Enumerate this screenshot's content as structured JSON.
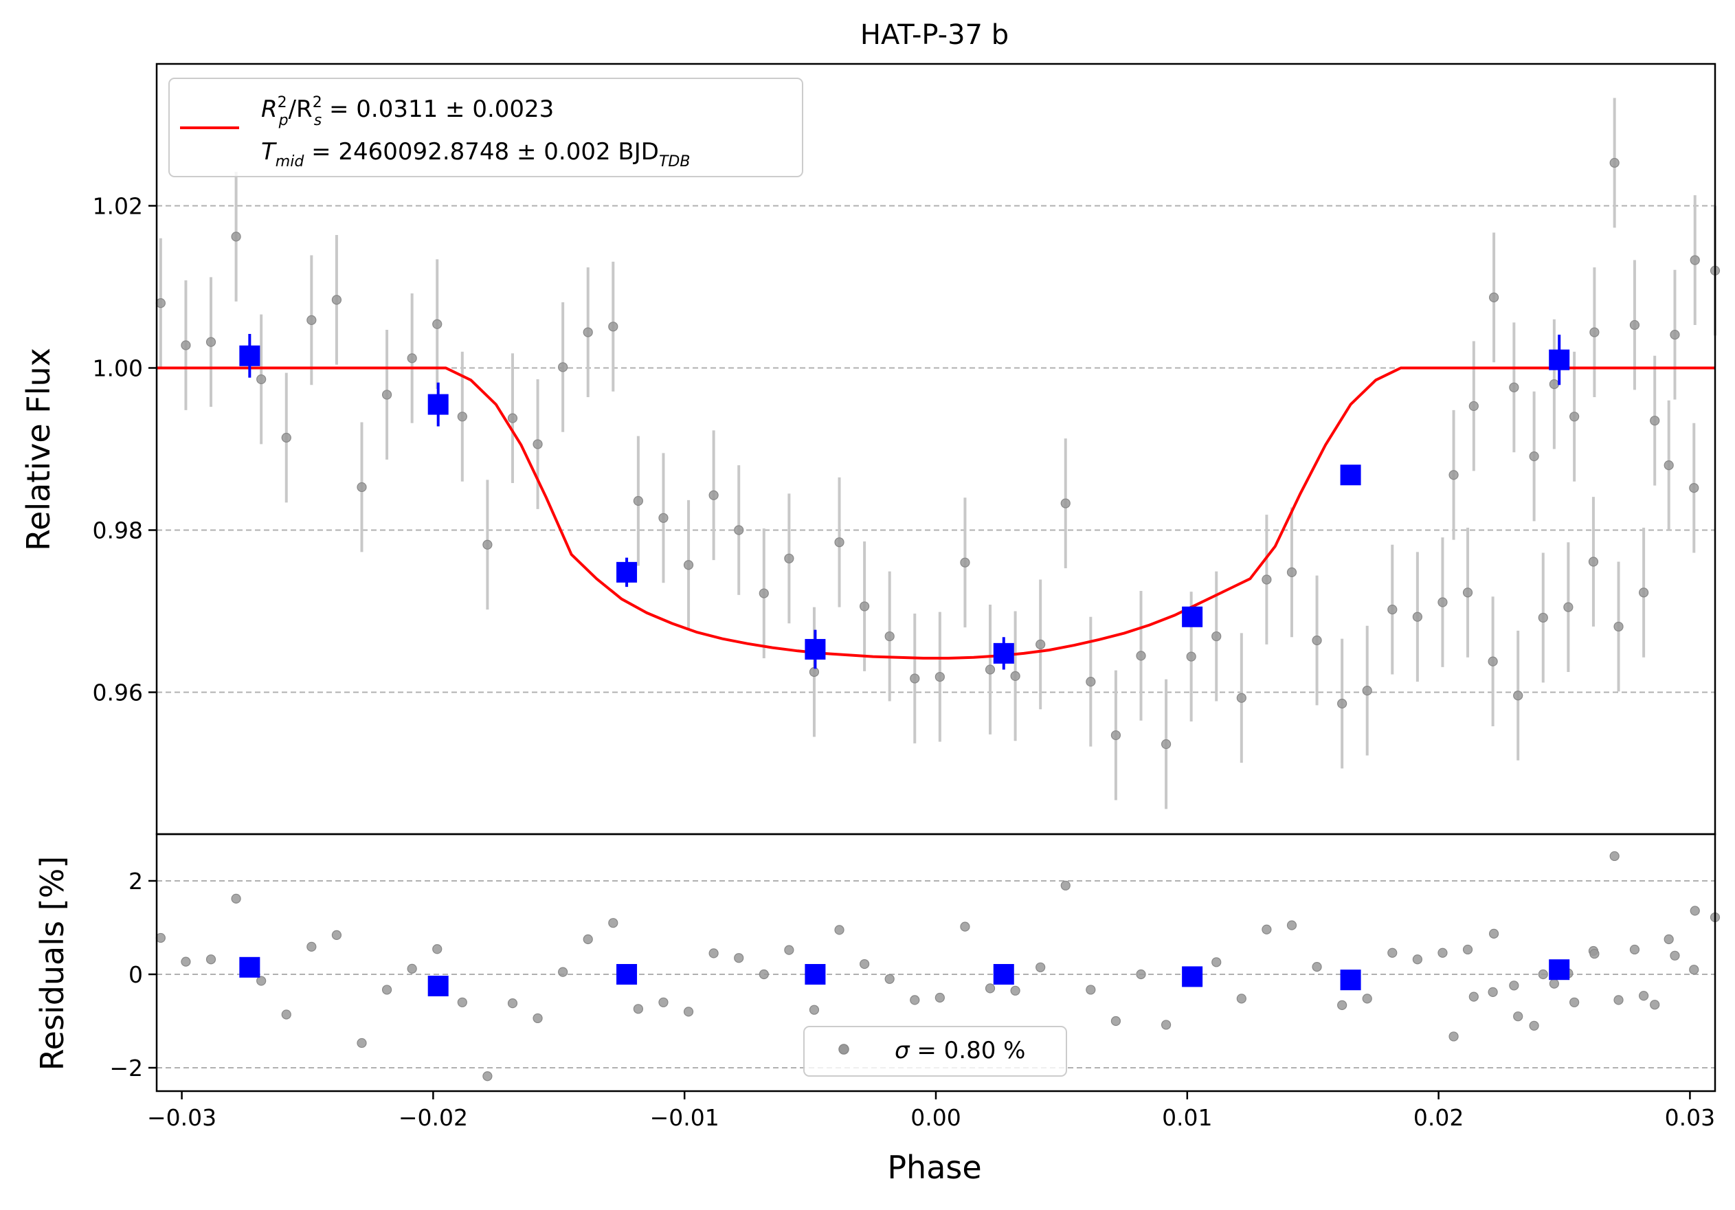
{
  "chart_data": [
    {
      "type": "scatter",
      "panel": "main",
      "title": "HAT-P-37 b",
      "xlabel": "",
      "ylabel": "Relative Flux",
      "xlim": [
        -0.031,
        0.031
      ],
      "ylim": [
        0.9425,
        1.0375
      ],
      "yticks": [
        0.96,
        0.98,
        1.0,
        1.02
      ],
      "ytick_labels": [
        "0.96",
        "0.98",
        "1.00",
        "1.02"
      ],
      "grid": "horizontal dashed",
      "legend_position": "upper-left",
      "legend": {
        "model_line": "R_p^2/R_s^2 = 0.0311 ± 0.0023",
        "tmid_line": "T_mid = 2460092.8748 ± 0.002 BJD_TDB",
        "model_prefix": "R",
        "model_sub1": "p",
        "model_mid": "/R",
        "model_sub2": "s",
        "model_value": " = 0.0311 ± 0.0023",
        "tmid_prefix": "T",
        "tmid_sub": "mid",
        "tmid_value": " = 2460092.8748 ± 0.002 BJD",
        "tmid_unit_sub": "TDB"
      },
      "colors": {
        "model": "#ff0000",
        "binned": "#0000ff",
        "raw": "#808080",
        "errorbar": "#c8c8c8",
        "grid": "#b0b0b0"
      },
      "raw_data": {
        "x": [
          -0.03084,
          -0.02984,
          -0.02884,
          -0.02784,
          -0.02684,
          -0.02584,
          -0.02484,
          -0.02384,
          -0.02284,
          -0.02184,
          -0.02084,
          -0.01984,
          -0.01884,
          -0.01784,
          -0.01684,
          -0.01584,
          -0.01484,
          -0.01384,
          -0.01284,
          -0.01184,
          -0.01084,
          -0.00984,
          -0.00884,
          -0.00784,
          -0.00684,
          -0.00584,
          -0.00484,
          -0.00384,
          -0.00284,
          -0.00184,
          -0.00084,
          0.00016,
          0.00116,
          0.00216,
          0.00316,
          0.00416,
          0.00516,
          0.00616,
          0.00716,
          0.00816,
          0.00916,
          0.01016,
          0.01116,
          0.01216,
          0.01316,
          0.01416,
          0.01516,
          0.01616,
          0.01716,
          0.01816,
          0.01916,
          0.02016,
          0.02116,
          0.02216,
          0.02316,
          0.02416,
          0.02516,
          0.02616,
          0.02716,
          0.02816,
          0.02916,
          0.03016,
          0.03116
        ],
        "y": [
          1.008,
          1.0028,
          1.0032,
          1.0162,
          0.9986,
          0.9914,
          1.0059,
          1.0084,
          0.9853,
          0.9967,
          1.0012,
          1.0054,
          0.994,
          0.9782,
          0.9938,
          0.9906,
          1.0001,
          1.0044,
          1.0051,
          0.9836,
          0.9815,
          0.9757,
          0.9843,
          0.98,
          0.9722,
          0.9765,
          0.9625,
          0.9785,
          0.9706,
          0.9669,
          0.9617,
          0.9619,
          0.976,
          0.9628,
          0.962,
          0.9659,
          0.9833,
          0.9613,
          0.9547,
          0.9645,
          0.9536,
          0.9644,
          0.9669,
          0.9593,
          0.9739,
          0.9748,
          0.9664,
          0.9586,
          0.9602,
          0.9702,
          0.9693,
          0.9711,
          0.9723,
          0.9638,
          0.9596,
          0.9692,
          0.9705,
          0.9761,
          0.9681,
          0.9723,
          0.988,
          0.9852,
          0.9994
        ],
        "err": [
          0.008,
          0.008,
          0.008,
          0.008,
          0.008,
          0.008,
          0.008,
          0.008,
          0.008,
          0.008,
          0.008,
          0.008,
          0.008,
          0.008,
          0.008,
          0.008,
          0.008,
          0.008,
          0.008,
          0.008,
          0.008,
          0.008,
          0.008,
          0.008,
          0.008,
          0.008,
          0.008,
          0.008,
          0.008,
          0.008,
          0.008,
          0.008,
          0.008,
          0.008,
          0.008,
          0.008,
          0.008,
          0.008,
          0.008,
          0.008,
          0.008,
          0.008,
          0.008,
          0.008,
          0.008,
          0.008,
          0.008,
          0.008,
          0.008,
          0.008,
          0.008,
          0.008,
          0.008,
          0.008,
          0.008,
          0.008,
          0.008,
          0.008,
          0.008,
          0.008,
          0.008,
          0.008,
          0.008
        ]
      },
      "raw_data_right": {
        "x": [
          0.0206,
          0.0214,
          0.0222,
          0.023,
          0.0238,
          0.0246,
          0.0254,
          0.0262,
          0.027,
          0.0278,
          0.0286,
          0.0294,
          0.0302,
          0.031
        ],
        "y": [
          0.9868,
          0.9953,
          1.0087,
          0.9976,
          0.9891,
          0.998,
          0.994,
          1.0044,
          1.0253,
          1.0053,
          0.9935,
          1.0041,
          1.0133,
          1.012
        ],
        "err": [
          0.008,
          0.008,
          0.008,
          0.008,
          0.008,
          0.008,
          0.008,
          0.008,
          0.008,
          0.008,
          0.008,
          0.008,
          0.008,
          0.008
        ]
      },
      "binned_data": {
        "x": [
          -0.0273,
          -0.0198,
          -0.0123,
          -0.0048,
          0.0027,
          0.0102,
          0.0165,
          0.0248
        ],
        "y": [
          1.0015,
          0.9955,
          0.9748,
          0.9653,
          0.9648,
          0.9693,
          0.9868,
          1.001
        ],
        "err": [
          0.0027,
          0.0027,
          0.0018,
          0.0024,
          0.002,
          0.001,
          0.0004,
          0.0031
        ]
      },
      "model": {
        "x": [
          -0.031,
          -0.0195,
          -0.0185,
          -0.0175,
          -0.0165,
          -0.0155,
          -0.0145,
          -0.0135,
          -0.0125,
          -0.0115,
          -0.0105,
          -0.0095,
          -0.0085,
          -0.0075,
          -0.0065,
          -0.0055,
          -0.0045,
          -0.0035,
          -0.0025,
          -0.0015,
          -0.0005,
          0.0005,
          0.0015,
          0.0025,
          0.0035,
          0.0045,
          0.0055,
          0.0065,
          0.0075,
          0.0085,
          0.0095,
          0.0105,
          0.0115,
          0.0125,
          0.0135,
          0.0145,
          0.0155,
          0.0165,
          0.0175,
          0.0185,
          0.0195,
          0.031
        ],
        "y": [
          1.0,
          1.0,
          0.9985,
          0.9955,
          0.9905,
          0.984,
          0.977,
          0.974,
          0.9715,
          0.9698,
          0.9685,
          0.9674,
          0.9666,
          0.966,
          0.9655,
          0.9651,
          0.9648,
          0.9646,
          0.9644,
          0.9643,
          0.9642,
          0.9642,
          0.9643,
          0.9645,
          0.9648,
          0.9652,
          0.9658,
          0.9665,
          0.9673,
          0.9683,
          0.9695,
          0.971,
          0.9725,
          0.974,
          0.978,
          0.9845,
          0.9905,
          0.9955,
          0.9985,
          1.0,
          1.0,
          1.0
        ]
      }
    },
    {
      "type": "scatter",
      "panel": "residuals",
      "xlabel": "Phase",
      "ylabel": "Residuals [%]",
      "xlim": [
        -0.031,
        0.031
      ],
      "ylim": [
        -2.5,
        3.0
      ],
      "xticks": [
        -0.03,
        -0.02,
        -0.01,
        0.0,
        0.01,
        0.02,
        0.03
      ],
      "xtick_labels": [
        "−0.03",
        "−0.02",
        "−0.01",
        "0.00",
        "0.01",
        "0.02",
        "0.03"
      ],
      "yticks": [
        -2,
        0,
        2
      ],
      "ytick_labels": [
        "−2",
        "0",
        "2"
      ],
      "grid": "horizontal dashed",
      "legend_position": "lower-center",
      "legend": {
        "sigma_symbol": "σ",
        "sigma_value": " = 0.80 %"
      },
      "raw_data": {
        "x": [
          -0.03084,
          -0.02984,
          -0.02884,
          -0.02784,
          -0.02684,
          -0.02584,
          -0.02484,
          -0.02384,
          -0.02284,
          -0.02184,
          -0.02084,
          -0.01984,
          -0.01884,
          -0.01784,
          -0.01684,
          -0.01584,
          -0.01484,
          -0.01384,
          -0.01284,
          -0.01184,
          -0.01084,
          -0.00984,
          -0.00884,
          -0.00784,
          -0.00684,
          -0.00584,
          -0.00484,
          -0.00384,
          -0.00284,
          -0.00184,
          -0.00084,
          0.00016,
          0.00116,
          0.00216,
          0.00316,
          0.00416,
          0.00516,
          0.00616,
          0.00716,
          0.00816,
          0.00916,
          0.01016,
          0.01116,
          0.01216,
          0.01316,
          0.01416,
          0.01516,
          0.01616,
          0.01716,
          0.01816,
          0.01916,
          0.02016,
          0.02116,
          0.02216,
          0.02316,
          0.02416,
          0.02516,
          0.02616,
          0.02716,
          0.02816,
          0.02916,
          0.03016,
          0.03116
        ],
        "y": [
          0.78,
          0.27,
          0.32,
          1.62,
          -0.14,
          -0.86,
          0.59,
          0.84,
          -1.47,
          -0.33,
          0.12,
          0.54,
          -0.6,
          -2.18,
          -0.62,
          -0.94,
          0.05,
          0.75,
          1.1,
          -0.74,
          -0.6,
          -0.8,
          0.45,
          0.35,
          0.0,
          0.52,
          -0.76,
          0.95,
          0.22,
          -0.1,
          -0.55,
          -0.5,
          1.02,
          -0.3,
          -0.35,
          0.15,
          1.9,
          -0.33,
          -1.0,
          0.0,
          -1.08,
          0.0,
          0.26,
          -0.52,
          0.96,
          1.05,
          0.16,
          -0.66,
          -0.52,
          0.46,
          0.32,
          0.46,
          0.53,
          -0.38,
          -0.9,
          0.0,
          0.02,
          0.5,
          -0.55,
          -0.46,
          0.75,
          0.1,
          -0.1
        ]
      },
      "raw_data_right": {
        "x": [
          0.0206,
          0.0214,
          0.0222,
          0.023,
          0.0238,
          0.0246,
          0.0254,
          0.0262,
          0.027,
          0.0278,
          0.0286,
          0.0294,
          0.0302,
          0.031
        ],
        "y": [
          -1.33,
          -0.48,
          0.87,
          -0.24,
          -1.1,
          -0.2,
          -0.6,
          0.44,
          2.53,
          0.53,
          -0.65,
          0.4,
          1.36,
          1.22
        ]
      },
      "binned_data": {
        "x": [
          -0.0273,
          -0.0198,
          -0.0123,
          -0.0048,
          0.0027,
          0.0102,
          0.0165,
          0.0248
        ],
        "y": [
          0.15,
          -0.25,
          0.0,
          0.0,
          0.0,
          -0.05,
          -0.12,
          0.1
        ]
      }
    }
  ]
}
